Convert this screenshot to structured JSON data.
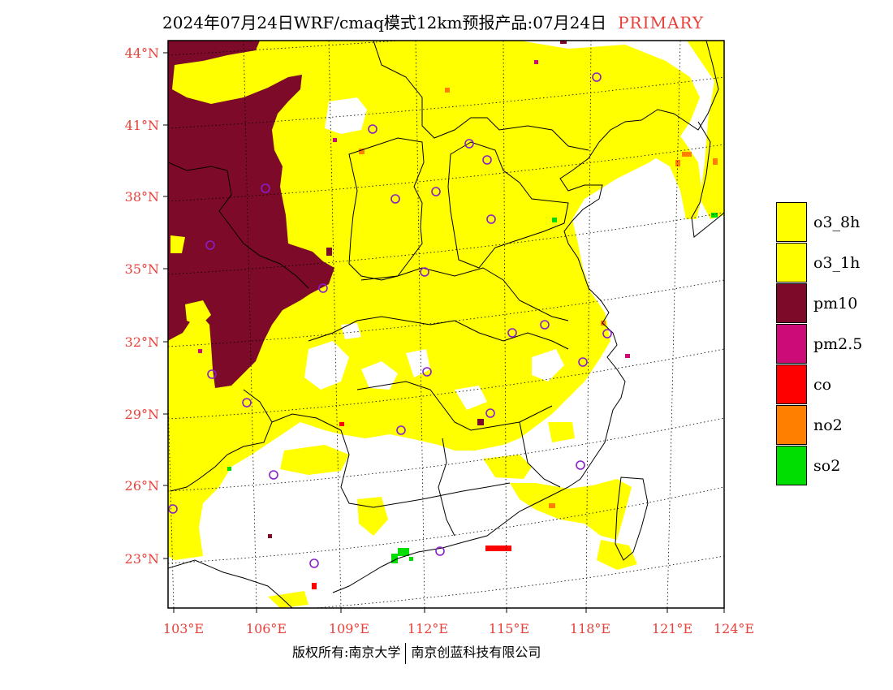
{
  "title": {
    "main": "2024年07月24日WRF/cmaq模式12km预报产品:07月24日",
    "tag": "PRIMARY",
    "tag_color": "#e8403a"
  },
  "axes": {
    "lat_labels": [
      "44°N",
      "41°N",
      "38°N",
      "35°N",
      "32°N",
      "29°N",
      "26°N",
      "23°N"
    ],
    "lon_labels": [
      "103°E",
      "106°E",
      "109°E",
      "112°E",
      "115°E",
      "118°E",
      "121°E",
      "124°E"
    ],
    "label_color": "#e8403a"
  },
  "legend": {
    "items": [
      {
        "label": "o3_8h",
        "color": "#ffff00"
      },
      {
        "label": "o3_1h",
        "color": "#ffff00"
      },
      {
        "label": "pm10",
        "color": "#7d0a28"
      },
      {
        "label": "pm2.5",
        "color": "#cc0a78"
      },
      {
        "label": "co",
        "color": "#ff0000"
      },
      {
        "label": "no2",
        "color": "#ff7f00"
      },
      {
        "label": "so2",
        "color": "#00dd00"
      }
    ]
  },
  "footer": {
    "left": "版权所有:南京大学",
    "right": "南京创蓝科技有限公司"
  }
}
